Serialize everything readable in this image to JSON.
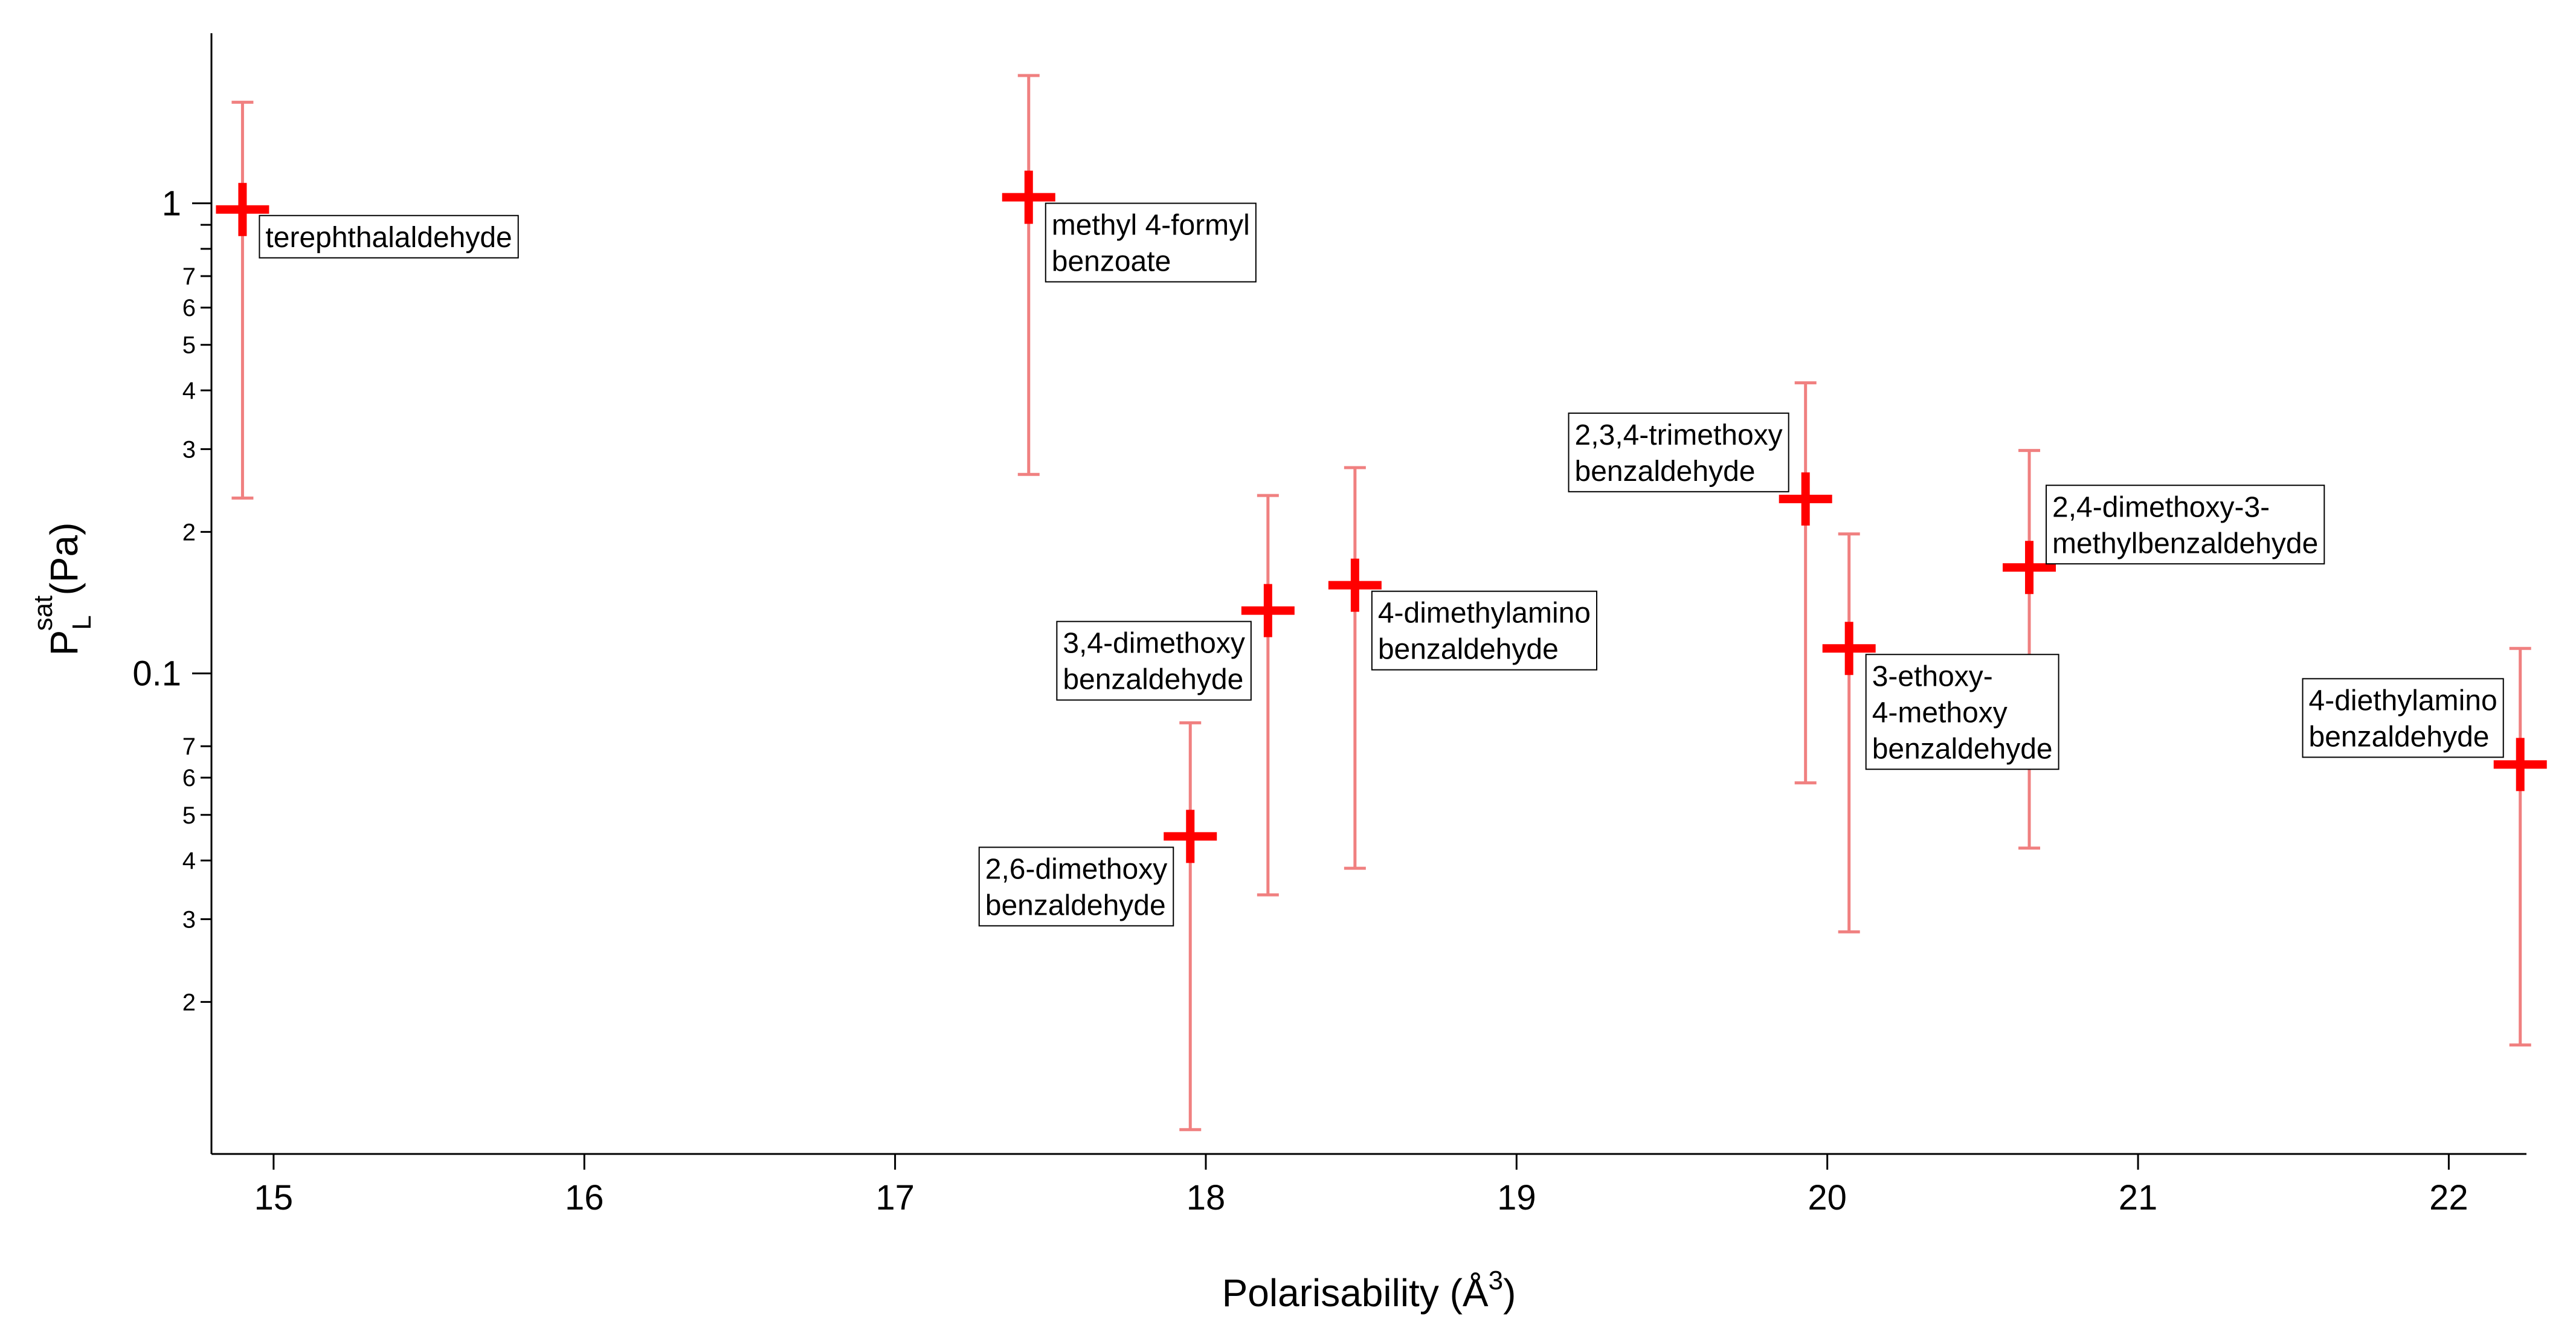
{
  "chart_data": {
    "type": "scatter",
    "xlabel": "Polarisability (Å",
    "xlabel_sup": "3",
    "xlabel_close": ")",
    "ylabel_main": "P",
    "ylabel_sub": "L",
    "ylabel_sup": "sat",
    "ylabel_unit": "(Pa)",
    "xlim": [
      14.8,
      22.25
    ],
    "ylim": [
      0.0095,
      2.3
    ],
    "yscale": "log",
    "grid": false,
    "x_ticks": [
      15,
      16,
      17,
      18,
      19,
      20,
      21,
      22
    ],
    "y_major_ticks": [
      0.1,
      1
    ],
    "y_minor_ticks": [
      0.02,
      0.03,
      0.04,
      0.05,
      0.06,
      0.07,
      0.2,
      0.3,
      0.4,
      0.5,
      0.6,
      0.7,
      0.8,
      0.9
    ],
    "y_minor_labeled": [
      0.02,
      0.03,
      0.04,
      0.05,
      0.06,
      0.07,
      0.2,
      0.3,
      0.4,
      0.5,
      0.6,
      0.7
    ],
    "marker_color": "#ff0000",
    "errorbar_color": "#f08080",
    "points": [
      {
        "x": 14.9,
        "y": 0.97,
        "y_low": 0.236,
        "y_high": 1.64,
        "label": [
          "terephthalaldehyde"
        ],
        "anchor": "right-below"
      },
      {
        "x": 17.43,
        "y": 1.03,
        "y_low": 0.265,
        "y_high": 1.87,
        "label": [
          "methyl 4-formyl",
          "benzoate"
        ],
        "anchor": "right-below"
      },
      {
        "x": 17.95,
        "y": 0.045,
        "y_low": 0.0107,
        "y_high": 0.0785,
        "label": [
          "2,6-dimethoxy",
          "benzaldehyde"
        ],
        "anchor": "left-below"
      },
      {
        "x": 18.2,
        "y": 0.136,
        "y_low": 0.0338,
        "y_high": 0.239,
        "label": [
          "3,4-dimethoxy",
          "benzaldehyde"
        ],
        "anchor": "left-below"
      },
      {
        "x": 18.48,
        "y": 0.154,
        "y_low": 0.0385,
        "y_high": 0.274,
        "label": [
          "4-dimethylamino",
          "benzaldehyde"
        ],
        "anchor": "right-below"
      },
      {
        "x": 19.93,
        "y": 0.235,
        "y_low": 0.0585,
        "y_high": 0.415,
        "label": [
          "2,3,4-trimethoxy",
          "benzaldehyde"
        ],
        "anchor": "left-above"
      },
      {
        "x": 20.07,
        "y": 0.113,
        "y_low": 0.0282,
        "y_high": 0.198,
        "label": [
          "3-ethoxy-",
          "4-methoxy",
          "benzaldehyde"
        ],
        "anchor": "right-below"
      },
      {
        "x": 20.65,
        "y": 0.168,
        "y_low": 0.0425,
        "y_high": 0.298,
        "label": [
          "2,4-dimethoxy-3-",
          "methylbenzaldehyde"
        ],
        "anchor": "right-above"
      },
      {
        "x": 22.23,
        "y": 0.064,
        "y_low": 0.0162,
        "y_high": 0.113,
        "label": [
          "4-diethylamino",
          "benzaldehyde"
        ],
        "anchor": "left-above"
      }
    ]
  }
}
